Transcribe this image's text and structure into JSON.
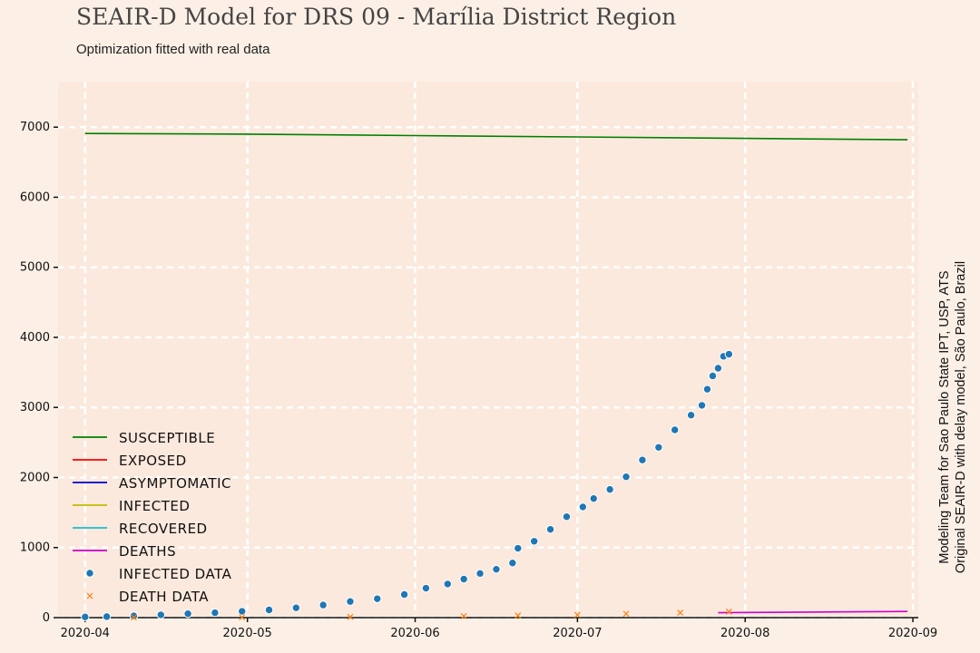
{
  "chart_data": {
    "type": "line",
    "title": "SEAIR-D Model for DRS 09 - Marília District Region",
    "subtitle": "Optimization fitted with real data",
    "side_note": [
      "Modeling Team for Sao Paulo State IPT, USP, ATS",
      "Original SEAIR-D with delay model, São Paulo, Brazil"
    ],
    "xlabel": "",
    "ylabel": "",
    "x_ticks": [
      "2020-04",
      "2020-05",
      "2020-06",
      "2020-07",
      "2020-08",
      "2020-09"
    ],
    "y_ticks": [
      "0",
      "1000",
      "2000",
      "3000",
      "4000",
      "5000",
      "6000",
      "7000"
    ],
    "xlim": [
      "2020-03-27",
      "2020-09-02"
    ],
    "ylim": [
      0,
      7650
    ],
    "grid": true,
    "legend_position": "lower-left",
    "series": [
      {
        "name": "SUSCEPTIBLE",
        "color": "#008000",
        "style": "line",
        "points": [
          [
            "2020-04-01",
            6910
          ],
          [
            "2020-05-01",
            6900
          ],
          [
            "2020-06-01",
            6880
          ],
          [
            "2020-07-01",
            6860
          ],
          [
            "2020-08-01",
            6840
          ],
          [
            "2020-08-31",
            6820
          ]
        ]
      },
      {
        "name": "EXPOSED",
        "color": "#ff0000",
        "style": "line",
        "points": []
      },
      {
        "name": "ASYMPTOMATIC",
        "color": "#0000cc",
        "style": "line",
        "points": []
      },
      {
        "name": "INFECTED",
        "color": "#bfbf00",
        "style": "line",
        "points": []
      },
      {
        "name": "RECOVERED",
        "color": "#17becf",
        "style": "line",
        "points": []
      },
      {
        "name": "DEATHS",
        "color": "#cc00cc",
        "style": "line",
        "points": [
          [
            "2020-07-27",
            70
          ],
          [
            "2020-08-05",
            75
          ],
          [
            "2020-08-15",
            80
          ],
          [
            "2020-08-31",
            88
          ]
        ]
      },
      {
        "name": "INFECTED DATA",
        "color": "#1f77b4",
        "style": "dots",
        "points": [
          [
            "2020-04-01",
            10
          ],
          [
            "2020-04-05",
            15
          ],
          [
            "2020-04-10",
            25
          ],
          [
            "2020-04-15",
            40
          ],
          [
            "2020-04-20",
            55
          ],
          [
            "2020-04-25",
            70
          ],
          [
            "2020-04-30",
            90
          ],
          [
            "2020-05-05",
            110
          ],
          [
            "2020-05-10",
            140
          ],
          [
            "2020-05-15",
            180
          ],
          [
            "2020-05-20",
            230
          ],
          [
            "2020-05-25",
            270
          ],
          [
            "2020-05-30",
            330
          ],
          [
            "2020-06-03",
            420
          ],
          [
            "2020-06-07",
            480
          ],
          [
            "2020-06-10",
            550
          ],
          [
            "2020-06-13",
            630
          ],
          [
            "2020-06-16",
            690
          ],
          [
            "2020-06-19",
            780
          ],
          [
            "2020-06-20",
            990
          ],
          [
            "2020-06-23",
            1090
          ],
          [
            "2020-06-26",
            1260
          ],
          [
            "2020-06-29",
            1440
          ],
          [
            "2020-07-02",
            1580
          ],
          [
            "2020-07-04",
            1700
          ],
          [
            "2020-07-07",
            1830
          ],
          [
            "2020-07-10",
            2010
          ],
          [
            "2020-07-13",
            2250
          ],
          [
            "2020-07-16",
            2430
          ],
          [
            "2020-07-19",
            2680
          ],
          [
            "2020-07-22",
            2890
          ],
          [
            "2020-07-24",
            3030
          ],
          [
            "2020-07-25",
            3260
          ],
          [
            "2020-07-26",
            3450
          ],
          [
            "2020-07-27",
            3560
          ],
          [
            "2020-07-28",
            3730
          ],
          [
            "2020-07-29",
            3760
          ]
        ]
      },
      {
        "name": "DEATH DATA",
        "color": "#ff7f0e",
        "style": "x",
        "points": [
          [
            "2020-04-10",
            2
          ],
          [
            "2020-04-30",
            5
          ],
          [
            "2020-05-20",
            10
          ],
          [
            "2020-06-10",
            20
          ],
          [
            "2020-06-20",
            30
          ],
          [
            "2020-07-01",
            40
          ],
          [
            "2020-07-10",
            55
          ],
          [
            "2020-07-20",
            70
          ],
          [
            "2020-07-29",
            85
          ]
        ]
      }
    ]
  }
}
